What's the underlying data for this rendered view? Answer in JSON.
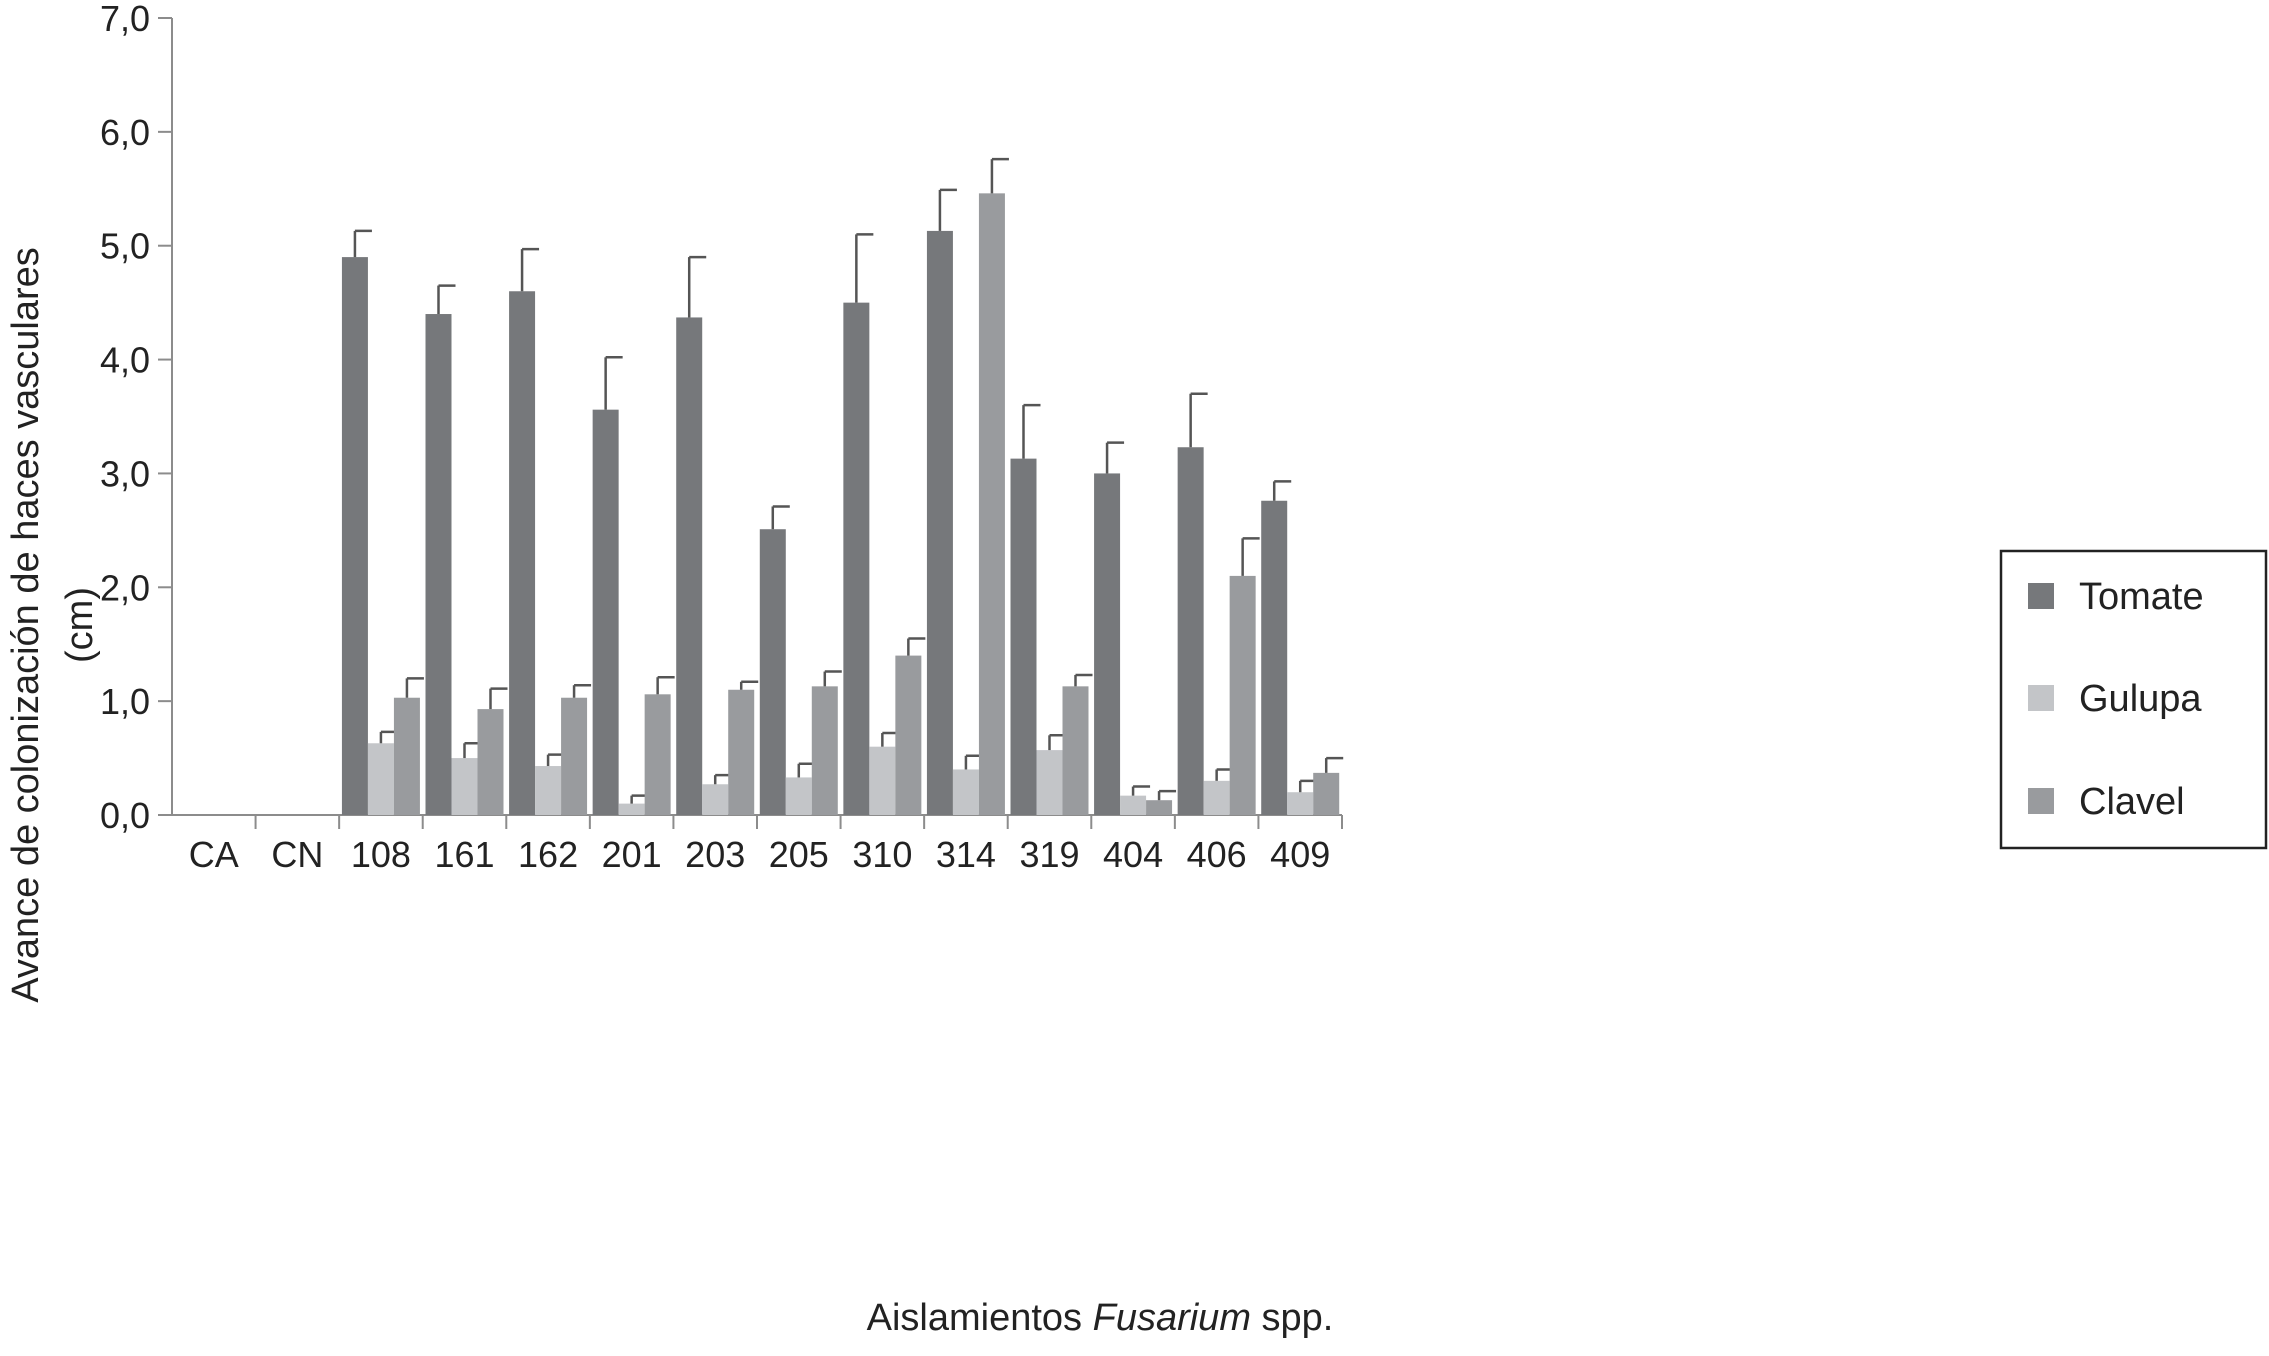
{
  "chart_data": {
    "type": "bar",
    "ylabel_line1": "Avance de colonización de haces vasculares",
    "ylabel_line2": "(cm)",
    "xlabel_prefix": "Aislamientos ",
    "xlabel_italic": "Fusarium",
    "xlabel_suffix": " spp.",
    "ylim": [
      0,
      7
    ],
    "yticks": [
      "0,0",
      "1,0",
      "2,0",
      "3,0",
      "4,0",
      "5,0",
      "6,0",
      "7,0"
    ],
    "categories": [
      "CA",
      "CN",
      "108",
      "161",
      "162",
      "201",
      "203",
      "205",
      "310",
      "314",
      "319",
      "404",
      "406",
      "409"
    ],
    "legend_position": "right",
    "series": [
      {
        "name": "Tomate",
        "color": "#76787b",
        "values": [
          0,
          0,
          4.9,
          4.4,
          4.6,
          3.56,
          4.37,
          2.51,
          4.5,
          5.13,
          3.13,
          3.0,
          3.23,
          2.76
        ],
        "errors": [
          0,
          0,
          0.23,
          0.25,
          0.37,
          0.46,
          0.53,
          0.2,
          0.6,
          0.36,
          0.47,
          0.27,
          0.47,
          0.17
        ]
      },
      {
        "name": "Gulupa",
        "color": "#c3c5c8",
        "values": [
          0,
          0,
          0.63,
          0.5,
          0.43,
          0.1,
          0.27,
          0.33,
          0.6,
          0.4,
          0.57,
          0.17,
          0.3,
          0.2
        ],
        "errors": [
          0,
          0,
          0.1,
          0.13,
          0.1,
          0.07,
          0.08,
          0.12,
          0.12,
          0.12,
          0.13,
          0.08,
          0.1,
          0.1
        ]
      },
      {
        "name": "Clavel",
        "color": "#999b9e",
        "values": [
          0,
          0,
          1.03,
          0.93,
          1.03,
          1.06,
          1.1,
          1.13,
          1.4,
          5.46,
          1.13,
          0.13,
          2.1,
          0.37
        ],
        "errors": [
          0,
          0,
          0.17,
          0.18,
          0.11,
          0.15,
          0.07,
          0.13,
          0.15,
          0.3,
          0.1,
          0.08,
          0.33,
          0.13
        ]
      }
    ]
  }
}
